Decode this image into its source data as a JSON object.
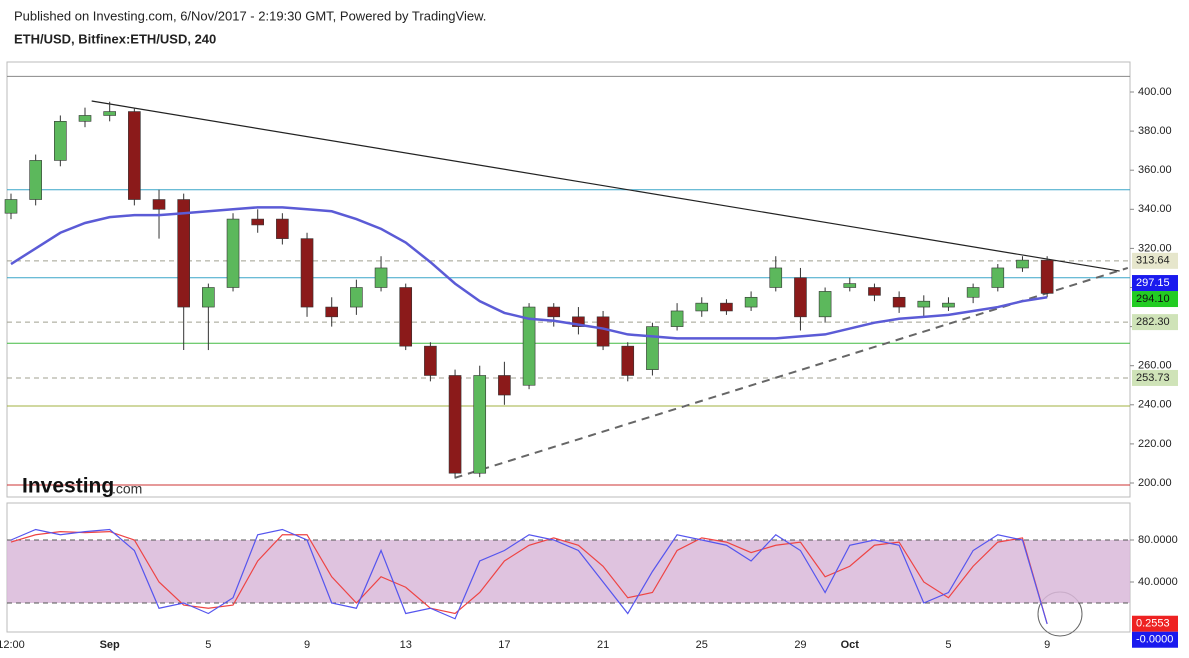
{
  "header": {
    "published": "Published on Investing.com, 6/Nov/2017 - 2:19:30 GMT, Powered by TradingView.",
    "symbol": "ETH/USD, Bitfinex:ETH/USD, 240"
  },
  "logo": {
    "name": "Investing",
    "suffix": ".com"
  },
  "chart_data": [
    {
      "type": "candlestick",
      "categories": [
        "12:00",
        null,
        null,
        null,
        "Sep",
        null,
        null,
        null,
        "5",
        null,
        null,
        null,
        "9",
        null,
        null,
        null,
        "13",
        null,
        null,
        null,
        "17",
        null,
        null,
        null,
        "21",
        null,
        null,
        null,
        "25",
        null,
        null,
        null,
        "29",
        null,
        "Oct",
        null,
        null,
        null,
        "5",
        null,
        null,
        null,
        "9"
      ],
      "open": [
        338,
        345,
        365,
        385,
        388,
        390,
        345,
        345,
        290,
        300,
        335,
        335,
        325,
        290,
        290,
        300,
        300,
        270,
        255,
        205,
        255,
        250,
        290,
        285,
        285,
        270,
        258,
        280,
        288,
        292,
        290,
        300,
        305,
        285,
        300,
        300,
        295,
        290,
        290,
        295,
        300,
        310,
        314
      ],
      "high": [
        348,
        368,
        388,
        392,
        395,
        392,
        350,
        348,
        302,
        338,
        340,
        338,
        328,
        295,
        304,
        316,
        302,
        272,
        258,
        260,
        262,
        292,
        292,
        290,
        288,
        272,
        282,
        292,
        295,
        294,
        298,
        316,
        310,
        300,
        305,
        302,
        298,
        296,
        295,
        302,
        312,
        316,
        316
      ],
      "low": [
        335,
        342,
        362,
        382,
        385,
        342,
        325,
        268,
        268,
        298,
        328,
        322,
        285,
        280,
        286,
        298,
        268,
        252,
        203,
        203,
        240,
        248,
        280,
        276,
        268,
        252,
        255,
        278,
        285,
        286,
        288,
        298,
        278,
        282,
        298,
        293,
        287,
        285,
        288,
        292,
        298,
        308,
        295
      ],
      "close": [
        345,
        365,
        385,
        388,
        390,
        345,
        340,
        290,
        300,
        335,
        332,
        325,
        290,
        285,
        300,
        310,
        270,
        255,
        205,
        255,
        245,
        290,
        285,
        280,
        270,
        255,
        280,
        288,
        292,
        288,
        295,
        310,
        285,
        298,
        302,
        296,
        290,
        293,
        292,
        300,
        310,
        314,
        297
      ],
      "up_color": "#5cb85c",
      "down_color": "#8b1a1a",
      "moving_average": {
        "color": "#5b5bd6",
        "values": [
          312,
          320,
          328,
          333,
          336,
          337,
          337,
          338,
          339,
          340,
          341,
          341,
          340,
          339,
          335,
          330,
          323,
          313,
          302,
          293,
          287,
          284,
          283,
          281,
          279,
          276,
          275,
          274,
          274,
          274,
          274,
          274,
          275,
          276,
          279,
          282,
          284,
          285,
          286,
          288,
          290,
          293,
          295
        ]
      },
      "ylim": [
        192.8,
        415.3
      ],
      "yticks": [
        {
          "value": 200,
          "label": "200.00"
        },
        {
          "value": 220,
          "label": "220.00"
        },
        {
          "value": 240,
          "label": "240.00"
        },
        {
          "value": 260,
          "label": "260.00"
        },
        {
          "value": 280,
          "label": "280.00"
        },
        {
          "value": 300,
          "label": "300.00"
        },
        {
          "value": 320,
          "label": "320.00"
        },
        {
          "value": 340,
          "label": "340.00"
        },
        {
          "value": 360,
          "label": "360.00"
        },
        {
          "value": 380,
          "label": "380.00"
        },
        {
          "value": 400,
          "label": "400.00"
        }
      ],
      "levels": [
        {
          "value": 408,
          "color": "#888888",
          "dash": false
        },
        {
          "value": 350,
          "color": "#3aa6c9",
          "dash": false
        },
        {
          "value": 313.64,
          "color": "#a0a090",
          "dash": true
        },
        {
          "value": 305,
          "color": "#3aa6c9",
          "dash": false
        },
        {
          "value": 282.3,
          "color": "#a0a090",
          "dash": true
        },
        {
          "value": 271.5,
          "color": "#44bb44",
          "dash": false
        },
        {
          "value": 253.73,
          "color": "#a0a090",
          "dash": true
        },
        {
          "value": 239.4,
          "color": "#a0b040",
          "dash": false
        },
        {
          "value": 199,
          "color": "#cc3333",
          "dash": false
        }
      ],
      "trendlines": [
        {
          "points": [
            [
              3.27,
              395.4
            ],
            [
              44.94,
              308.4
            ]
          ],
          "color": "#222222",
          "dash": false
        },
        {
          "points": [
            [
              17.98,
              202.6
            ],
            [
              45.27,
              310
            ]
          ],
          "color": "#666666",
          "dash": true
        }
      ],
      "price_labels": [
        {
          "value": 313.64,
          "bg": "#e6e6cc",
          "fg": "#222222"
        },
        {
          "value": 297.15,
          "bg": "#1a1aee",
          "fg": "#ffffff"
        },
        {
          "value": {
            "value": 294.1,
            "label": "294.10"
          },
          "bg": "#22cc22",
          "fg": "#111111"
        },
        {
          "value": {
            "value": 282.3,
            "label": "282.30"
          },
          "bg": "#cfe3b8",
          "fg": "#222222"
        },
        {
          "value": 253.73,
          "bg": "#cfe3b8",
          "fg": "#222222"
        }
      ]
    },
    {
      "type": "line",
      "ylim": [
        -7.6,
        113.3
      ],
      "yticks": [
        {
          "value": 40,
          "label": "40.0000"
        },
        {
          "value": 80,
          "label": "80.0000"
        }
      ],
      "band": [
        20,
        80
      ],
      "band_color": "#d9b8d9",
      "series": [
        {
          "color": "#5555ee",
          "values": [
            80,
            90,
            85,
            88,
            90,
            70,
            15,
            20,
            10,
            25,
            85,
            90,
            80,
            20,
            15,
            70,
            10,
            15,
            5,
            60,
            70,
            85,
            80,
            70,
            40,
            10,
            50,
            85,
            80,
            75,
            60,
            85,
            70,
            30,
            75,
            80,
            75,
            20,
            30,
            70,
            85,
            80,
            0
          ],
          "last_label": "-0.0000",
          "label_bg": "#1a1aee"
        },
        {
          "color": "#ee4444",
          "values": [
            78,
            85,
            88,
            87,
            88,
            80,
            40,
            18,
            15,
            18,
            60,
            85,
            85,
            45,
            20,
            45,
            35,
            15,
            10,
            30,
            60,
            75,
            82,
            75,
            55,
            25,
            30,
            70,
            82,
            78,
            68,
            75,
            78,
            45,
            55,
            75,
            78,
            40,
            25,
            55,
            78,
            82,
            0.2553
          ],
          "last_label": "0.2553",
          "label_bg": "#ee2222"
        }
      ]
    }
  ]
}
